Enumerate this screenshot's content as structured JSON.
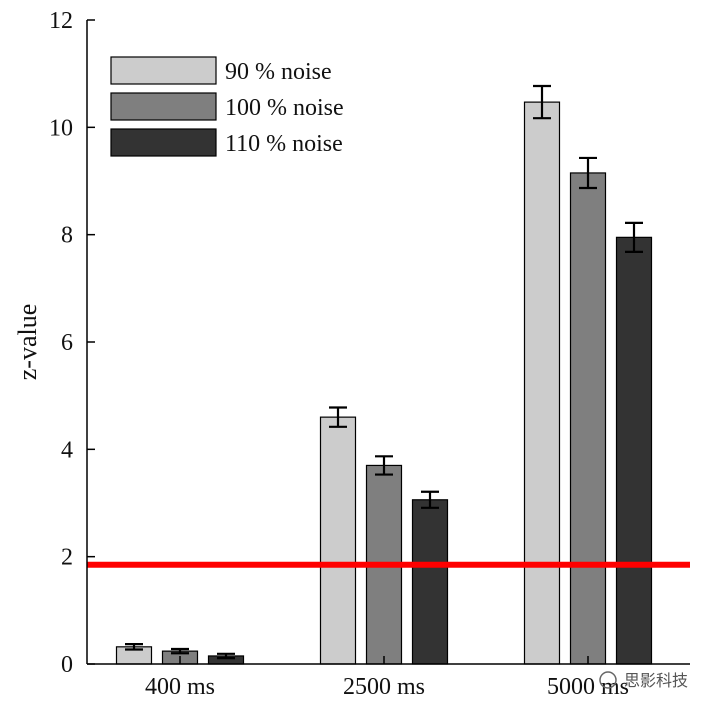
{
  "chart_data": {
    "type": "bar",
    "categories": [
      "400 ms",
      "2500 ms",
      "5000 ms"
    ],
    "series": [
      {
        "name": "90 % noise",
        "color": "#cccccc",
        "values": [
          0.32,
          4.6,
          10.47
        ],
        "errors": [
          0.05,
          0.18,
          0.3
        ]
      },
      {
        "name": "100 % noise",
        "color": "#7f7f7f",
        "values": [
          0.24,
          3.7,
          9.15
        ],
        "errors": [
          0.04,
          0.17,
          0.28
        ]
      },
      {
        "name": "110 % noise",
        "color": "#333333",
        "values": [
          0.15,
          3.06,
          7.95
        ],
        "errors": [
          0.04,
          0.15,
          0.27
        ]
      }
    ],
    "title": "",
    "xlabel": "",
    "ylabel": "z-value",
    "ylim": [
      0,
      12
    ],
    "yticks": [
      0,
      2,
      4,
      6,
      8,
      10,
      12
    ],
    "threshold": {
      "value": 1.85,
      "color": "#ff0000"
    },
    "grid": false,
    "legend_position": "top-left"
  },
  "watermark": {
    "text": "思影科技"
  }
}
